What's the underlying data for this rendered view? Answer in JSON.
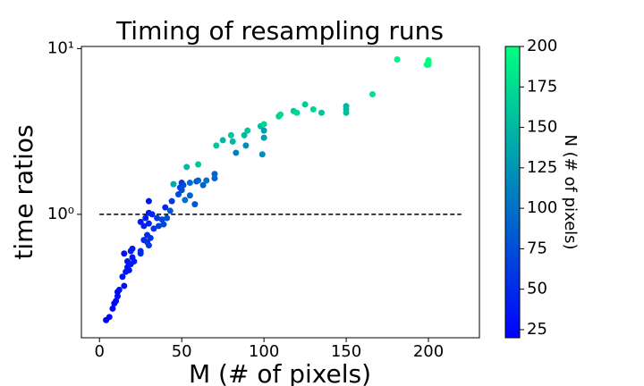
{
  "chart_data": {
    "type": "scatter",
    "title": "Timing of resampling runs",
    "xlabel": "M (# of pixels)",
    "ylabel": "time ratios",
    "x": [
      4,
      6,
      8,
      9,
      10,
      11,
      11,
      12,
      14,
      15,
      15,
      16,
      17,
      17,
      18,
      19,
      19,
      20,
      20,
      21,
      25,
      25,
      25,
      27,
      27,
      28,
      29,
      29,
      30,
      30,
      30,
      30,
      31,
      32,
      33,
      35,
      36,
      38,
      39,
      40,
      41,
      43,
      44,
      45,
      48,
      49,
      50,
      50,
      51,
      52,
      53,
      55,
      55,
      58,
      59,
      60,
      60,
      63,
      65,
      70,
      70,
      71,
      75,
      80,
      81,
      83,
      88,
      89,
      90,
      98,
      99,
      100,
      100,
      100,
      109,
      110,
      118,
      120,
      125,
      130,
      135,
      150,
      150,
      150,
      166,
      181,
      199,
      200,
      200,
      200,
      200
    ],
    "y": [
      0.23,
      0.24,
      0.27,
      0.29,
      0.3,
      0.32,
      0.34,
      0.35,
      0.42,
      0.37,
      0.58,
      0.45,
      0.48,
      0.52,
      0.46,
      0.5,
      0.6,
      0.62,
      0.55,
      0.52,
      0.58,
      0.6,
      0.9,
      0.7,
      0.85,
      0.95,
      0.68,
      0.75,
      0.65,
      1.2,
      1.02,
      0.88,
      0.72,
      1.0,
      0.82,
      0.95,
      0.85,
      0.93,
      0.87,
      1.1,
      0.95,
      1.05,
      1.2,
      1.52,
      1.32,
      1.45,
      1.55,
      1.4,
      1.5,
      1.22,
      1.93,
      1.3,
      1.55,
      1.15,
      1.58,
      1.6,
      2.0,
      1.5,
      1.6,
      1.65,
      1.75,
      2.6,
      2.8,
      3.0,
      2.75,
      2.35,
      3.0,
      2.6,
      3.2,
      3.4,
      2.3,
      3.2,
      2.9,
      3.5,
      3.9,
      4.0,
      4.2,
      4.1,
      4.6,
      4.3,
      4.1,
      4.5,
      4.3,
      4.1,
      5.3,
      8.6,
      8.0,
      8.5,
      8.2,
      8.3,
      8.0
    ],
    "c": [
      20,
      25,
      25,
      25,
      25,
      30,
      25,
      30,
      30,
      30,
      30,
      35,
      35,
      35,
      35,
      40,
      40,
      40,
      40,
      40,
      50,
      50,
      40,
      50,
      45,
      40,
      55,
      50,
      60,
      35,
      40,
      45,
      55,
      45,
      55,
      60,
      65,
      70,
      70,
      50,
      75,
      80,
      60,
      140,
      70,
      65,
      60,
      75,
      70,
      100,
      150,
      90,
      95,
      80,
      80,
      90,
      160,
      90,
      100,
      90,
      90,
      160,
      150,
      160,
      150,
      110,
      150,
      120,
      160,
      155,
      120,
      130,
      130,
      170,
      170,
      170,
      165,
      170,
      165,
      170,
      160,
      150,
      155,
      155,
      180,
      190,
      195,
      200,
      195,
      200,
      198
    ],
    "cmap": [
      "#0000ff",
      "#00ff80"
    ],
    "clim": [
      20,
      200
    ],
    "cticks": [
      25,
      50,
      75,
      100,
      125,
      150,
      175,
      200
    ],
    "colorbar_label": "N (# of pixels)",
    "hline": {
      "y": 1,
      "x": [
        0,
        220
      ],
      "color": "#000000",
      "dashed": true
    },
    "xlim": [
      -11,
      231
    ],
    "xticks": [
      0,
      50,
      100,
      150,
      200
    ],
    "ylim": [
      0.18,
      10.3
    ],
    "yscale": "log",
    "yticks": [
      {
        "value": 1,
        "label": "10⁰"
      },
      {
        "value": 10,
        "label": "10¹"
      }
    ]
  }
}
